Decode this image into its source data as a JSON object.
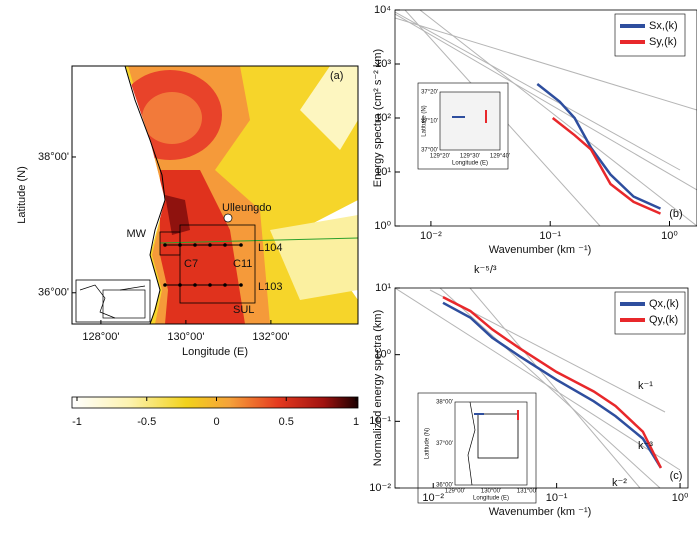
{
  "chart_data": [
    {
      "type": "map",
      "panel_label": "(a)",
      "xlabel": "Longitude (E)",
      "ylabel": "Latitude (N)",
      "xlim": [
        127.32,
        134.05
      ],
      "ylim": [
        35.54,
        39.34
      ],
      "xticks": [
        {
          "value": 128,
          "label": "128°00'"
        },
        {
          "value": 130,
          "label": "130°00'"
        },
        {
          "value": 132,
          "label": "132°00'"
        }
      ],
      "yticks": [
        {
          "value": 36,
          "label": "36°00'"
        },
        {
          "value": 38,
          "label": "38°00'"
        }
      ],
      "annotations": [
        "Ulleungdo",
        "MW",
        "L104",
        "C7",
        "C11",
        "L103",
        "SUL"
      ],
      "colorbar": {
        "clim": [
          -1,
          1
        ],
        "ticks": [
          -1,
          -0.5,
          0,
          0.5,
          1
        ]
      }
    },
    {
      "type": "line",
      "panel_label": "(b)",
      "xlabel": "Wavenumber (km ⁻¹)",
      "ylabel": "Energy spectra (cm² s⁻² km)",
      "log_x": true,
      "log_y": true,
      "xlim": [
        0.005,
        1.7
      ],
      "ylim": [
        1,
        10000
      ],
      "xticks": [
        {
          "value": 0.01,
          "label": "10⁻²"
        },
        {
          "value": 0.1,
          "label": "10⁻¹"
        },
        {
          "value": 1,
          "label": "10⁰"
        }
      ],
      "yticks": [
        {
          "value": 1,
          "label": "10⁰"
        },
        {
          "value": 10,
          "label": "10¹"
        },
        {
          "value": 100,
          "label": "10²"
        },
        {
          "value": 1000,
          "label": "10³"
        },
        {
          "value": 10000,
          "label": "10⁴"
        }
      ],
      "legend": "upper right",
      "series": [
        {
          "name": "Sx,(k)",
          "color": "#2e4e9e",
          "x": [
            0.078,
            0.12,
            0.16,
            0.22,
            0.32,
            0.5,
            0.84
          ],
          "values": [
            427,
            200,
            100,
            28,
            9,
            3.5,
            2.1
          ]
        },
        {
          "name": "Sy,(k)",
          "color": "#e8282b",
          "x": [
            0.105,
            0.16,
            0.22,
            0.32,
            0.5,
            0.84
          ],
          "values": [
            100,
            48,
            26,
            6,
            2.8,
            1.7
          ]
        }
      ],
      "inset": {
        "xlabel": "Longitude (E)",
        "ylabel": "Latitude (N)",
        "xticks": [
          "129°20'",
          "129°30'",
          "129°40'"
        ],
        "yticks": [
          "37°20'",
          "37°10'",
          "37°00'"
        ]
      }
    },
    {
      "type": "line",
      "panel_label": "(c)",
      "xlabel": "Wavenumber (km ⁻¹)",
      "ylabel": "Normalized energy spectra (km)",
      "log_x": true,
      "log_y": true,
      "xlim": [
        0.0049,
        1.16
      ],
      "ylim": [
        0.01,
        10
      ],
      "xticks": [
        {
          "value": 0.01,
          "label": "10⁻²"
        },
        {
          "value": 0.1,
          "label": "10⁻¹"
        },
        {
          "value": 1,
          "label": "10⁰"
        }
      ],
      "yticks": [
        {
          "value": 0.01,
          "label": "10⁻²"
        },
        {
          "value": 0.1,
          "label": "10⁻¹"
        },
        {
          "value": 1,
          "label": "10⁰"
        },
        {
          "value": 10,
          "label": "10¹"
        }
      ],
      "legend": "upper right",
      "series": [
        {
          "name": "Qx,(k)",
          "color": "#2e4e9e",
          "x": [
            0.012,
            0.02,
            0.03,
            0.05,
            0.1,
            0.2,
            0.3,
            0.5,
            0.7
          ],
          "values": [
            6.0,
            3.6,
            1.8,
            0.95,
            0.42,
            0.2,
            0.12,
            0.055,
            0.02
          ]
        },
        {
          "name": "Qy,(k)",
          "color": "#e8282b",
          "x": [
            0.012,
            0.02,
            0.03,
            0.05,
            0.1,
            0.2,
            0.3,
            0.5,
            0.7
          ],
          "values": [
            7.3,
            4.5,
            2.4,
            1.25,
            0.55,
            0.28,
            0.17,
            0.07,
            0.02
          ]
        }
      ],
      "annotations": [
        "k⁻⁵/³",
        "k⁻¹",
        "k⁻³",
        "k⁻²"
      ],
      "inset": {
        "xlabel": "Longitude (E)",
        "ylabel": "Latitude (N)",
        "xticks": [
          "129°00'",
          "130°00'",
          "131°00'"
        ],
        "yticks": [
          "38°00'",
          "37°00'",
          "36°00'"
        ]
      }
    }
  ]
}
